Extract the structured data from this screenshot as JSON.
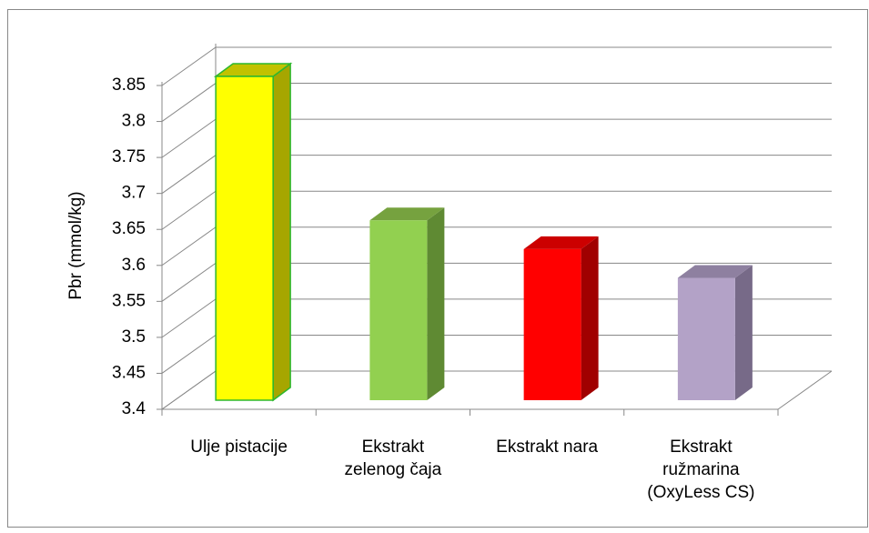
{
  "chart_data": {
    "type": "bar3d",
    "y_axis_label": "Pbr (mmol/kg)",
    "categories": [
      [
        "Ulje pistacije"
      ],
      [
        "Ekstrakt",
        "zelenog čaja"
      ],
      [
        "Ekstrakt nara"
      ],
      [
        "Ekstrakt",
        "ružmarina",
        "(OxyLess CS)"
      ]
    ],
    "values": [
      3.85,
      3.65,
      3.61,
      3.57
    ],
    "colors": [
      "#ffff00",
      "#92d050",
      "#ff0000",
      "#b3a2c7"
    ],
    "side_colors": [
      "#a6a600",
      "#5f8a33",
      "#a00000",
      "#776a88"
    ],
    "top_colors": [
      "#c2c200",
      "#76a23f",
      "#cc0000",
      "#8e80a0"
    ],
    "ylim": [
      3.4,
      3.85
    ],
    "yticks": [
      3.4,
      3.45,
      3.5,
      3.55,
      3.6,
      3.65,
      3.7,
      3.75,
      3.8,
      3.85
    ],
    "grid": true
  }
}
